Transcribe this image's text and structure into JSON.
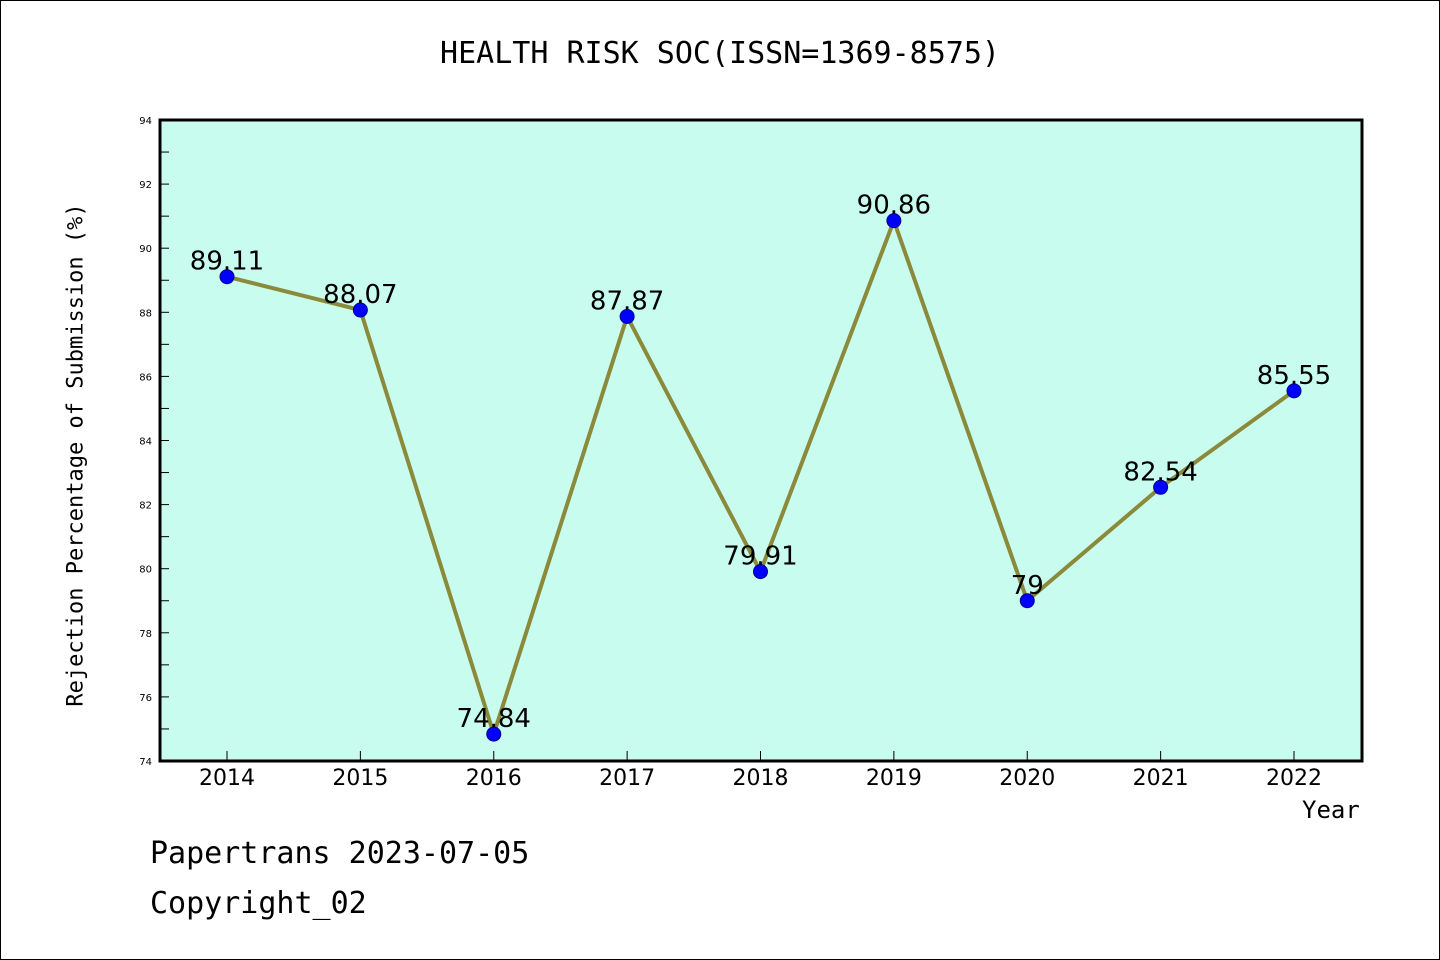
{
  "chart_data": {
    "type": "line",
    "title": "HEALTH RISK SOC(ISSN=1369-8575)",
    "xlabel": "Year",
    "ylabel": "Rejection Percentage of Submission (%)",
    "categories": [
      "2014",
      "2015",
      "2016",
      "2017",
      "2018",
      "2019",
      "2020",
      "2021",
      "2022"
    ],
    "series": [
      {
        "values": [
          89.11,
          88.07,
          74.84,
          87.87,
          79.91,
          90.86,
          79,
          82.54,
          85.55
        ],
        "labels": [
          "89.11",
          "88.07",
          "74.84",
          "87.87",
          "79.91",
          "90.86",
          "79",
          "82.54",
          "85.55"
        ]
      }
    ],
    "ylim": [
      74,
      94
    ],
    "yticks": [
      "74",
      "76",
      "78",
      "80",
      "82",
      "84",
      "86",
      "88",
      "90",
      "92",
      "94"
    ],
    "grid": false,
    "colors": {
      "plot_background": "#c8fcee",
      "line": "#8b8a3a",
      "marker": "#0000ff",
      "marker_edge": "#00008b"
    }
  },
  "footer": {
    "line1": "Papertrans 2023-07-05",
    "line2": "Copyright_02"
  }
}
